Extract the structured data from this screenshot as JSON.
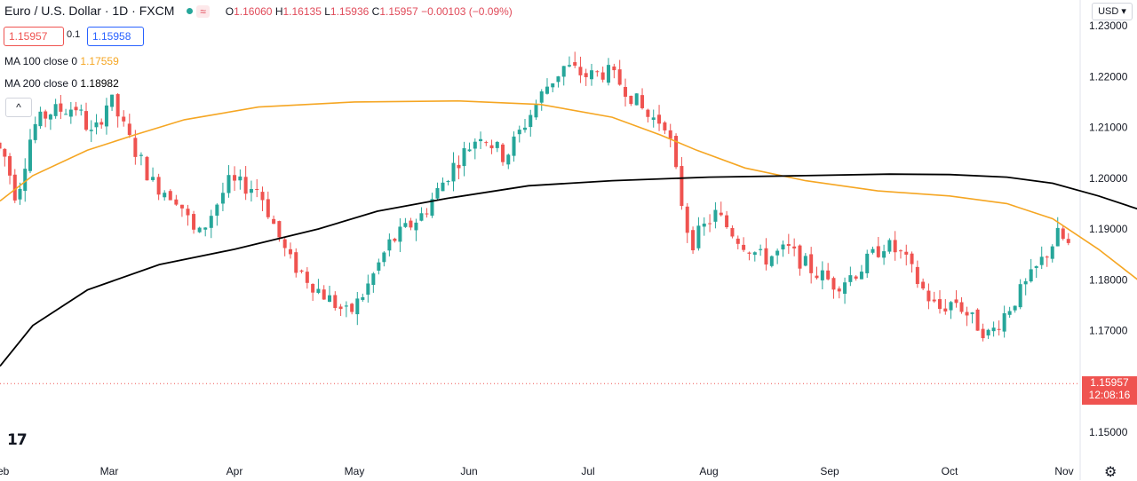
{
  "header": {
    "symbol": "Euro / U.S. Dollar · 1D · FXCM",
    "status_badge": "≈",
    "open_label": "O",
    "open": "1.16060",
    "high_label": "H",
    "high": "1.16135",
    "low_label": "L",
    "low": "1.15936",
    "close_label": "C",
    "close": "1.15957",
    "change": "−0.00103 (−0.09%)"
  },
  "trade": {
    "sell": "1.15957",
    "spread": "0.1",
    "buy": "1.15958"
  },
  "indicators": [
    {
      "label": "MA 100 close 0",
      "value": "1.17559",
      "color": "#f5a623"
    },
    {
      "label": "MA 200 close 0",
      "value": "1.18982",
      "color": "#000000"
    }
  ],
  "controls": {
    "collapse": "^",
    "currency": "USD ▾",
    "logo": "17",
    "settings": "⚙"
  },
  "price_tag": {
    "price": "1.15957",
    "countdown": "12:08:16"
  },
  "colors": {
    "up": "#26a69a",
    "down": "#ef5350",
    "ma100": "#f5a623",
    "ma200": "#000000"
  },
  "chart_data": {
    "type": "candlestick",
    "yticks": [
      "1.15000",
      "1.16000",
      "1.17000",
      "1.18000",
      "1.19000",
      "1.20000",
      "1.21000",
      "1.22000",
      "1.23000"
    ],
    "xticks": [
      "Feb",
      "Mar",
      "Apr",
      "May",
      "Jun",
      "Jul",
      "Aug",
      "Sep",
      "Oct",
      "Nov"
    ],
    "ylim": [
      1.1455,
      1.2325
    ],
    "ma100": [
      [
        -0.2,
        1.1955
      ],
      [
        0.3,
        1.2005
      ],
      [
        0.8,
        1.2055
      ],
      [
        1.2,
        1.2085
      ],
      [
        1.6,
        1.2115
      ],
      [
        2.2,
        1.214
      ],
      [
        3.0,
        1.215
      ],
      [
        3.9,
        1.2152
      ],
      [
        4.6,
        1.2145
      ],
      [
        5.2,
        1.212
      ],
      [
        5.6,
        1.2085
      ],
      [
        5.9,
        1.2055
      ],
      [
        6.3,
        1.202
      ],
      [
        6.8,
        1.1995
      ],
      [
        7.4,
        1.1975
      ],
      [
        8.0,
        1.1965
      ],
      [
        8.5,
        1.195
      ],
      [
        8.9,
        1.192
      ],
      [
        9.3,
        1.186
      ],
      [
        9.7,
        1.179
      ],
      [
        10.1,
        1.174
      ]
    ],
    "ma200": [
      [
        -0.2,
        1.163
      ],
      [
        0.3,
        1.171
      ],
      [
        0.8,
        1.178
      ],
      [
        1.4,
        1.183
      ],
      [
        2.0,
        1.186
      ],
      [
        2.7,
        1.19
      ],
      [
        3.2,
        1.1935
      ],
      [
        3.8,
        1.196
      ],
      [
        4.5,
        1.1985
      ],
      [
        5.2,
        1.1995
      ],
      [
        6.0,
        1.2002
      ],
      [
        6.8,
        1.2005
      ],
      [
        7.5,
        1.2008
      ],
      [
        8.0,
        1.2007
      ],
      [
        8.5,
        1.2002
      ],
      [
        8.9,
        1.199
      ],
      [
        9.3,
        1.1965
      ],
      [
        9.7,
        1.1935
      ],
      [
        10.1,
        1.19
      ]
    ],
    "close_path": [
      [
        -0.05,
        1.207
      ],
      [
        0.05,
        1.204
      ],
      [
        0.15,
        1.196
      ],
      [
        0.3,
        1.21
      ],
      [
        0.45,
        1.213
      ],
      [
        0.7,
        1.214
      ],
      [
        0.85,
        1.208
      ],
      [
        1.0,
        1.216
      ],
      [
        1.15,
        1.208
      ],
      [
        1.35,
        1.199
      ],
      [
        1.55,
        1.196
      ],
      [
        1.7,
        1.188
      ],
      [
        1.95,
        1.199
      ],
      [
        2.2,
        1.198
      ],
      [
        2.45,
        1.184
      ],
      [
        2.7,
        1.178
      ],
      [
        2.95,
        1.173
      ],
      [
        3.1,
        1.178
      ],
      [
        3.3,
        1.187
      ],
      [
        3.6,
        1.193
      ],
      [
        3.85,
        1.202
      ],
      [
        4.1,
        1.209
      ],
      [
        4.3,
        1.204
      ],
      [
        4.5,
        1.212
      ],
      [
        4.65,
        1.218
      ],
      [
        4.8,
        1.222
      ],
      [
        5.0,
        1.22
      ],
      [
        5.15,
        1.221
      ],
      [
        5.3,
        1.218
      ],
      [
        5.5,
        1.212
      ],
      [
        5.65,
        1.211
      ],
      [
        5.75,
        1.198
      ],
      [
        5.85,
        1.187
      ],
      [
        6.05,
        1.193
      ],
      [
        6.25,
        1.188
      ],
      [
        6.45,
        1.184
      ],
      [
        6.65,
        1.186
      ],
      [
        6.85,
        1.182
      ],
      [
        7.05,
        1.179
      ],
      [
        7.25,
        1.182
      ],
      [
        7.45,
        1.187
      ],
      [
        7.6,
        1.185
      ],
      [
        7.75,
        1.179
      ],
      [
        7.9,
        1.174
      ],
      [
        8.05,
        1.176
      ],
      [
        8.2,
        1.172
      ],
      [
        8.35,
        1.169
      ],
      [
        8.5,
        1.174
      ],
      [
        8.7,
        1.18
      ],
      [
        8.95,
        1.189
      ],
      [
        9.1,
        1.185
      ],
      [
        9.3,
        1.182
      ],
      [
        9.45,
        1.176
      ],
      [
        9.6,
        1.172
      ],
      [
        9.75,
        1.17
      ],
      [
        9.95,
        1.165
      ],
      [
        10.1,
        1.162
      ],
      [
        10.3,
        1.158
      ],
      [
        10.5,
        1.16
      ],
      [
        10.7,
        1.164
      ],
      [
        10.9,
        1.165
      ],
      [
        11.05,
        1.162
      ],
      [
        11.15,
        1.167
      ],
      [
        11.25,
        1.159
      ]
    ]
  }
}
